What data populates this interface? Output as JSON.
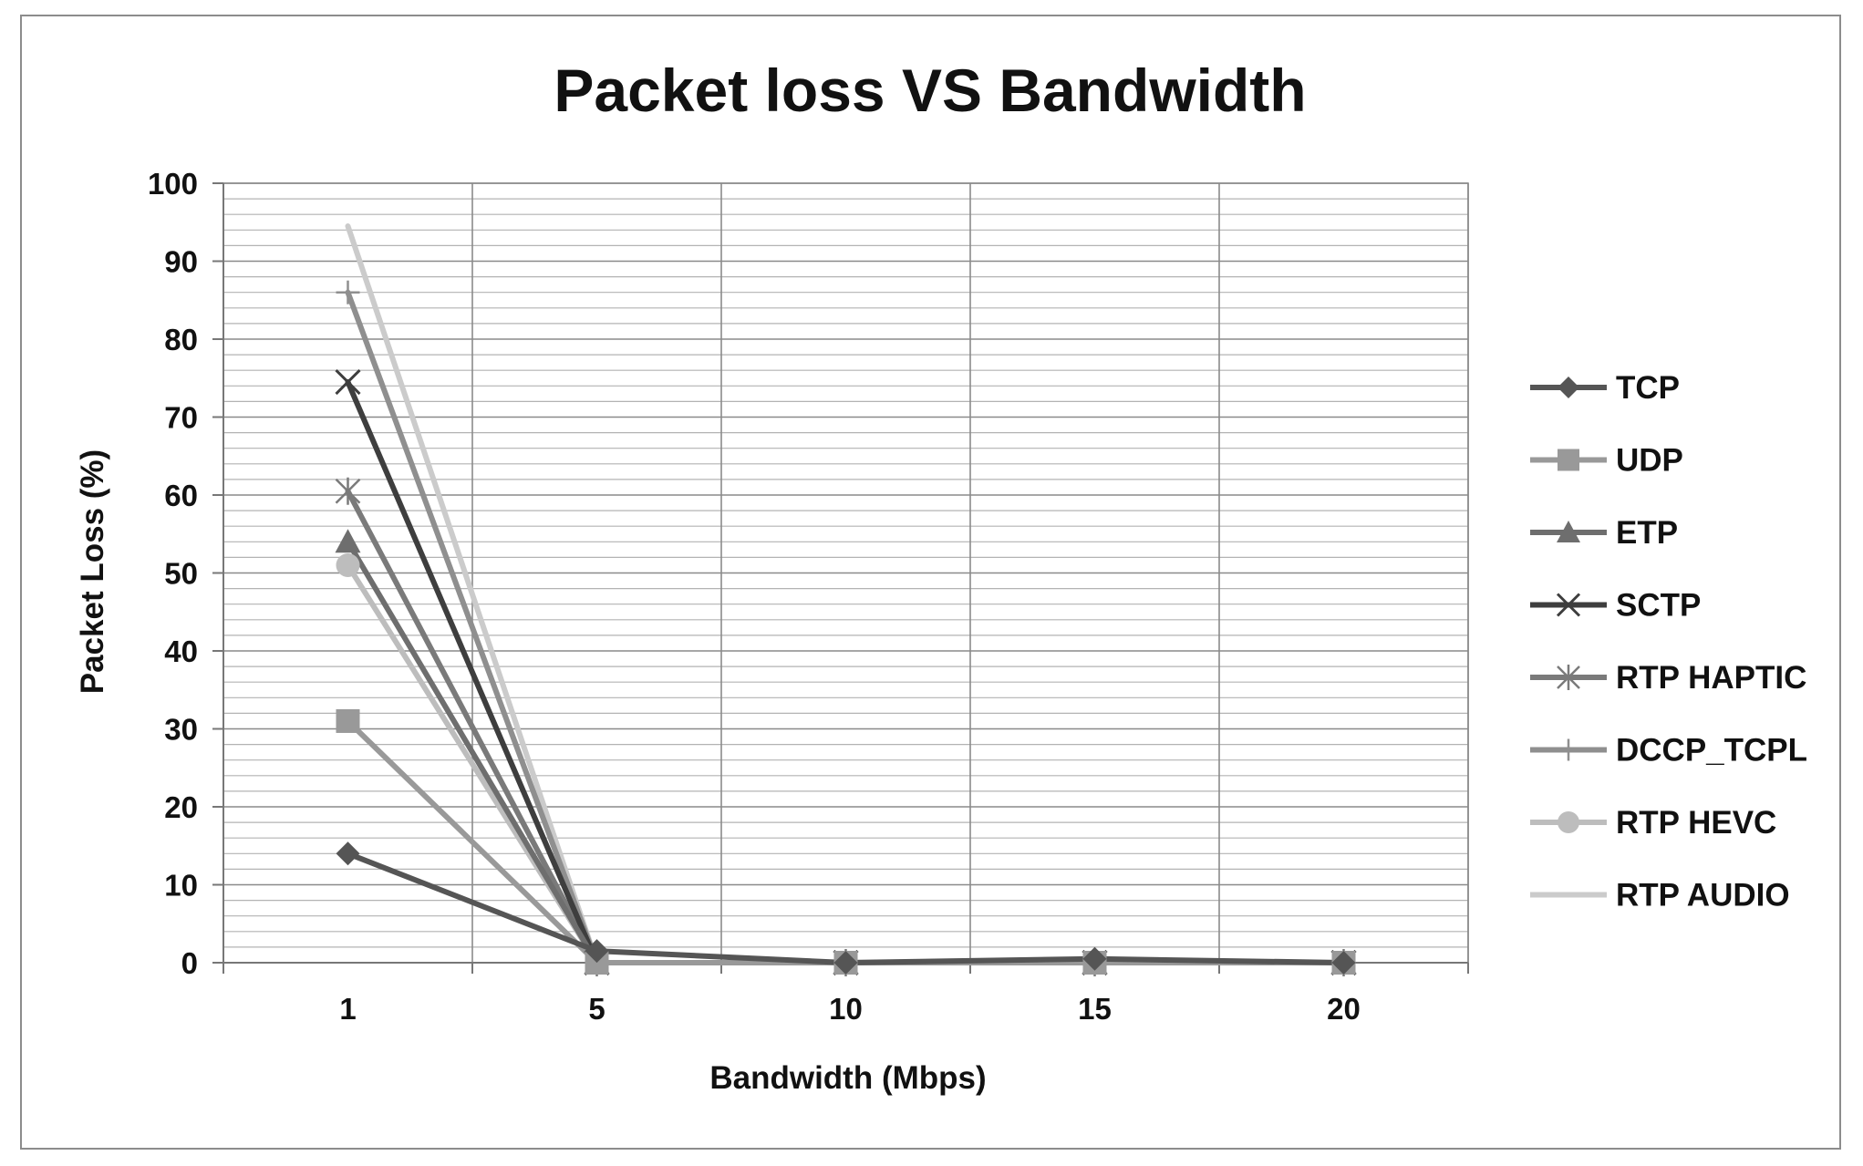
{
  "chart_data": {
    "type": "line",
    "title": "Packet loss VS Bandwidth",
    "xlabel": "Bandwidth (Mbps)",
    "ylabel": "Packet Loss (%)",
    "categories": [
      "1",
      "5",
      "10",
      "15",
      "20"
    ],
    "ylim": [
      0,
      100
    ],
    "yticks": [
      "0",
      "10",
      "20",
      "30",
      "40",
      "50",
      "60",
      "70",
      "80",
      "90",
      "100"
    ],
    "grid": true,
    "legend_position": "right",
    "series": [
      {
        "name": "TCP",
        "values": [
          14,
          1.5,
          0,
          0.5,
          0
        ],
        "color": "#555555",
        "marker": "diamond"
      },
      {
        "name": "UDP",
        "values": [
          31,
          0,
          0,
          0,
          0
        ],
        "color": "#999999",
        "marker": "square"
      },
      {
        "name": "ETP",
        "values": [
          54,
          0,
          0,
          0,
          0
        ],
        "color": "#6e6e6e",
        "marker": "triangle"
      },
      {
        "name": "SCTP",
        "values": [
          74.5,
          0,
          0,
          0,
          0
        ],
        "color": "#3e3e3e",
        "marker": "x"
      },
      {
        "name": "RTP HAPTIC",
        "values": [
          60.5,
          0,
          0,
          0,
          0
        ],
        "color": "#7a7a7a",
        "marker": "star"
      },
      {
        "name": "DCCP_TCPL",
        "values": [
          86,
          0,
          0,
          0,
          0
        ],
        "color": "#8f8f8f",
        "marker": "plus"
      },
      {
        "name": "RTP HEVC",
        "values": [
          51,
          0,
          0,
          0,
          0
        ],
        "color": "#bdbdbd",
        "marker": "circle"
      },
      {
        "name": "RTP AUDIO",
        "values": [
          94.5,
          0,
          0,
          0,
          0
        ],
        "color": "#cbcbcb",
        "marker": "none"
      }
    ]
  }
}
